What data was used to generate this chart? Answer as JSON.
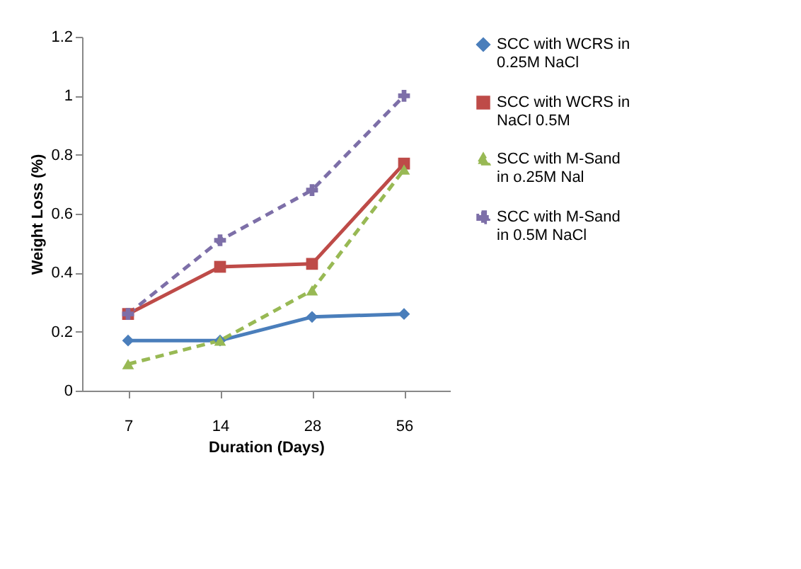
{
  "chart_data": {
    "type": "line",
    "xlabel": "Duration (Days)",
    "ylabel": "Weight Loss (%)",
    "categories": [
      "7",
      "14",
      "28",
      "56"
    ],
    "ylim": [
      0,
      1.2
    ],
    "yticks": [
      0,
      0.2,
      0.4,
      0.6,
      0.8,
      1,
      1.2
    ],
    "grid": false,
    "legend": "right",
    "series": [
      {
        "name": "SCC with WCRS in 0.25M NaCl",
        "color": "#4a7ebb",
        "marker": "diamond",
        "line_style": "solid",
        "values": [
          0.17,
          0.17,
          0.25,
          0.26
        ]
      },
      {
        "name": "SCC with WCRS  in NaCl  0.5M",
        "color": "#be4b48",
        "marker": "square",
        "line_style": "solid",
        "values": [
          0.26,
          0.42,
          0.43,
          0.77
        ]
      },
      {
        "name": "SCC with M-Sand in o.25M Nal",
        "color": "#98b954",
        "marker": "triangle",
        "line_style": "dashed",
        "values": [
          0.09,
          0.17,
          0.34,
          0.75
        ]
      },
      {
        "name": "SCC with M-Sand in 0.5M NaCl",
        "color": "#7d6fa8",
        "marker": "cross",
        "line_style": "dashed",
        "values": [
          0.26,
          0.51,
          0.68,
          1.0
        ]
      }
    ]
  }
}
